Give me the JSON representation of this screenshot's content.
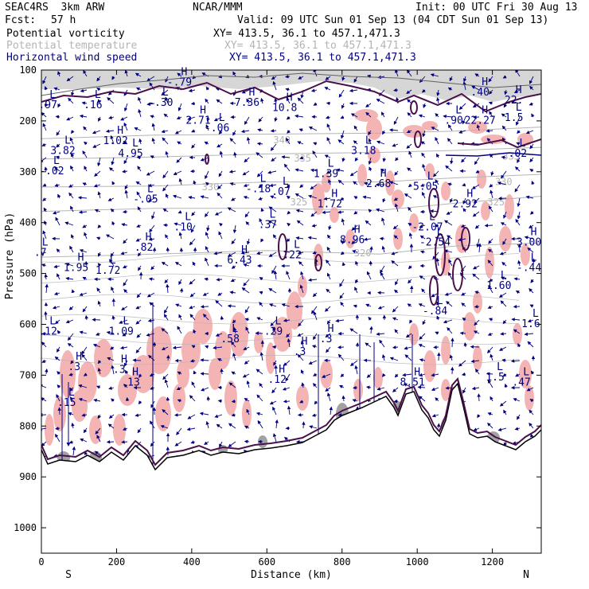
{
  "header": {
    "model": "SEAC4RS  3km ARW",
    "center": "NCAR/MMM",
    "init": "Init: 00 UTC Fri 30 Aug 13",
    "fcst_label": "Fcst:",
    "fcst_value": "57 h",
    "valid": "Valid: 09 UTC Sun 01 Sep 13 (04 CDT Sun 01 Sep 13)",
    "fields": [
      {
        "name": "Potential vorticity",
        "xy": "XY= 413.5, 36.1 to 457.1,471.3",
        "color": "#000000"
      },
      {
        "name": "Potential temperature",
        "xy": "XY= 413.5, 36.1 to 457.1,471.3",
        "color": "#b4b4b4"
      },
      {
        "name": "Horizontal wind speed",
        "xy": "XY= 413.5, 36.1 to 457.1,471.3",
        "color": "#000080"
      }
    ]
  },
  "chart_data": {
    "type": "cross-section",
    "xlabel": "Distance (km)",
    "ylabel": "Pressure (hPa)",
    "xlim": [
      0,
      1330
    ],
    "ylim": [
      1050,
      100
    ],
    "x_ticks": [
      0,
      200,
      400,
      600,
      800,
      1000,
      1200
    ],
    "y_ticks": [
      100,
      200,
      300,
      400,
      500,
      600,
      700,
      800,
      900,
      1000
    ],
    "x_end_labels": {
      "left": "S",
      "right": "N"
    },
    "colors": {
      "pv_contour": "#4b0f4b",
      "theta": "#b4b4b4",
      "wind": "#000080",
      "shade": "#f5b4b4",
      "terrain": "#000000"
    },
    "theta_isentropes": [
      {
        "label": "340",
        "points": [
          [
            0,
            235
          ],
          [
            300,
            228
          ],
          [
            600,
            226
          ],
          [
            900,
            224
          ],
          [
            1100,
            220
          ],
          [
            1330,
            212
          ]
        ]
      },
      {
        "label": "335",
        "points": [
          [
            0,
            275
          ],
          [
            300,
            271
          ],
          [
            600,
            265
          ],
          [
            900,
            262
          ],
          [
            1100,
            258
          ],
          [
            1330,
            252
          ]
        ]
      },
      {
        "label": "330",
        "points": [
          [
            0,
            330
          ],
          [
            300,
            328
          ],
          [
            600,
            320
          ],
          [
            900,
            320
          ],
          [
            1100,
            312
          ],
          [
            1330,
            305
          ]
        ]
      },
      {
        "label": "325",
        "points": [
          [
            0,
            378
          ],
          [
            300,
            372
          ],
          [
            600,
            372
          ],
          [
            900,
            376
          ],
          [
            1100,
            362
          ],
          [
            1330,
            348
          ]
        ]
      },
      {
        "label": "320",
        "points": [
          [
            0,
            468
          ],
          [
            300,
            462
          ],
          [
            600,
            455
          ],
          [
            900,
            462
          ],
          [
            1100,
            446
          ],
          [
            1330,
            440
          ]
        ]
      }
    ],
    "theta_labels": [
      {
        "text": "340",
        "x": 640,
        "y": 238
      },
      {
        "text": "335",
        "x": 695,
        "y": 274
      },
      {
        "text": "330",
        "x": 450,
        "y": 330
      },
      {
        "text": "325",
        "x": 685,
        "y": 360
      },
      {
        "text": "320",
        "x": 855,
        "y": 460
      },
      {
        "text": "335",
        "x": 1250,
        "y": 270
      },
      {
        "text": "330",
        "x": 1230,
        "y": 320
      },
      {
        "text": "325",
        "x": 1210,
        "y": 360
      }
    ],
    "extrema_markers": [
      {
        "type": "H",
        "value": "-.79",
        "x": 380,
        "y": 110
      },
      {
        "type": "L",
        "value": "-.30",
        "x": 330,
        "y": 150
      },
      {
        "type": "L",
        "value": ".16",
        "x": 150,
        "y": 155
      },
      {
        "type": "H",
        "value": "7.36",
        "x": 560,
        "y": 150
      },
      {
        "type": "H",
        "value": "10.8",
        "x": 660,
        "y": 160
      },
      {
        "type": "L",
        "value": ".97",
        "x": 30,
        "y": 155
      },
      {
        "type": "H",
        "value": ".40",
        "x": 1180,
        "y": 130
      },
      {
        "type": "H",
        "value": "22.",
        "x": 1270,
        "y": 145
      },
      {
        "type": "H",
        "value": "2.71",
        "x": 430,
        "y": 185
      },
      {
        "type": "L",
        "value": "-.06",
        "x": 480,
        "y": 200
      },
      {
        "type": "H",
        "value": "1.02",
        "x": 210,
        "y": 225
      },
      {
        "type": "L",
        "value": "4.95",
        "x": 250,
        "y": 250
      },
      {
        "type": "L",
        "value": "3.82",
        "x": 70,
        "y": 245
      },
      {
        "type": "L",
        "value": "-.02",
        "x": 40,
        "y": 285
      },
      {
        "type": "L",
        "value": ".90",
        "x": 1110,
        "y": 185
      },
      {
        "type": "H",
        "value": "22.27",
        "x": 1180,
        "y": 185
      },
      {
        "type": "L",
        "value": "1.5",
        "x": 1270,
        "y": 180
      },
      {
        "type": "L",
        "value": "3.18",
        "x": 870,
        "y": 245
      },
      {
        "type": "L",
        "value": ".02",
        "x": 1280,
        "y": 250
      },
      {
        "type": "L",
        "value": "1.39",
        "x": 770,
        "y": 290
      },
      {
        "type": "H",
        "value": "2.68",
        "x": 910,
        "y": 310
      },
      {
        "type": "L",
        "value": "5.05",
        "x": 1035,
        "y": 315
      },
      {
        "type": "L",
        "value": "-.05",
        "x": 290,
        "y": 340
      },
      {
        "type": "L",
        "value": "-.18",
        "x": 590,
        "y": 320
      },
      {
        "type": "L",
        "value": ".07",
        "x": 650,
        "y": 325
      },
      {
        "type": "H",
        "value": "1.72",
        "x": 780,
        "y": 350
      },
      {
        "type": "H",
        "value": "2.92",
        "x": 1140,
        "y": 350
      },
      {
        "type": "L",
        "value": ".37",
        "x": 615,
        "y": 390
      },
      {
        "type": "L",
        "value": ".10",
        "x": 390,
        "y": 395
      },
      {
        "type": "L",
        "value": "-2.07",
        "x": 1040,
        "y": 395
      },
      {
        "type": "H",
        "value": "8.96",
        "x": 840,
        "y": 420
      },
      {
        "type": "L",
        "value": "-2.54",
        "x": 1060,
        "y": 425
      },
      {
        "type": "H",
        "value": "3.00",
        "x": 1310,
        "y": 425
      },
      {
        "type": "H",
        "value": ".82",
        "x": 285,
        "y": 435
      },
      {
        "type": "H",
        "value": "6.43",
        "x": 540,
        "y": 460
      },
      {
        "type": "L",
        "value": ".22",
        "x": 680,
        "y": 450
      },
      {
        "type": "L",
        "value": "-.44",
        "x": 1310,
        "y": 475
      },
      {
        "type": "H",
        "value": "1.95",
        "x": 105,
        "y": 475
      },
      {
        "type": "L",
        "value": "1.72",
        "x": 190,
        "y": 480
      },
      {
        "type": "L",
        "value": ".7",
        "x": 10,
        "y": 445
      },
      {
        "type": "L",
        "value": "1.60",
        "x": 1230,
        "y": 510
      },
      {
        "type": "L",
        "value": "-.84",
        "x": 1060,
        "y": 560
      },
      {
        "type": "L",
        "value": "1.6",
        "x": 1315,
        "y": 585
      },
      {
        "type": "L",
        "value": ".12",
        "x": 30,
        "y": 600
      },
      {
        "type": "L",
        "value": "1.09",
        "x": 225,
        "y": 600
      },
      {
        "type": "L",
        "value": ".58",
        "x": 515,
        "y": 615
      },
      {
        "type": "L",
        "value": ".29",
        "x": 630,
        "y": 600
      },
      {
        "type": "H",
        "value": ".3",
        "x": 700,
        "y": 640
      },
      {
        "type": "H",
        "value": ".3",
        "x": 770,
        "y": 615
      },
      {
        "type": "H",
        "value": ".3",
        "x": 100,
        "y": 670
      },
      {
        "type": "H",
        "value": ".3",
        "x": 220,
        "y": 675
      },
      {
        "type": "H",
        "value": ".13",
        "x": 250,
        "y": 700
      },
      {
        "type": "H",
        "value": ".12",
        "x": 640,
        "y": 695
      },
      {
        "type": "L",
        "value": ".15",
        "x": 80,
        "y": 740
      },
      {
        "type": "L",
        "value": ".47",
        "x": 1290,
        "y": 700
      },
      {
        "type": "H",
        "value": "8.51",
        "x": 1000,
        "y": 700
      },
      {
        "type": "L",
        "value": "1.5",
        "x": 1220,
        "y": 690
      }
    ]
  }
}
